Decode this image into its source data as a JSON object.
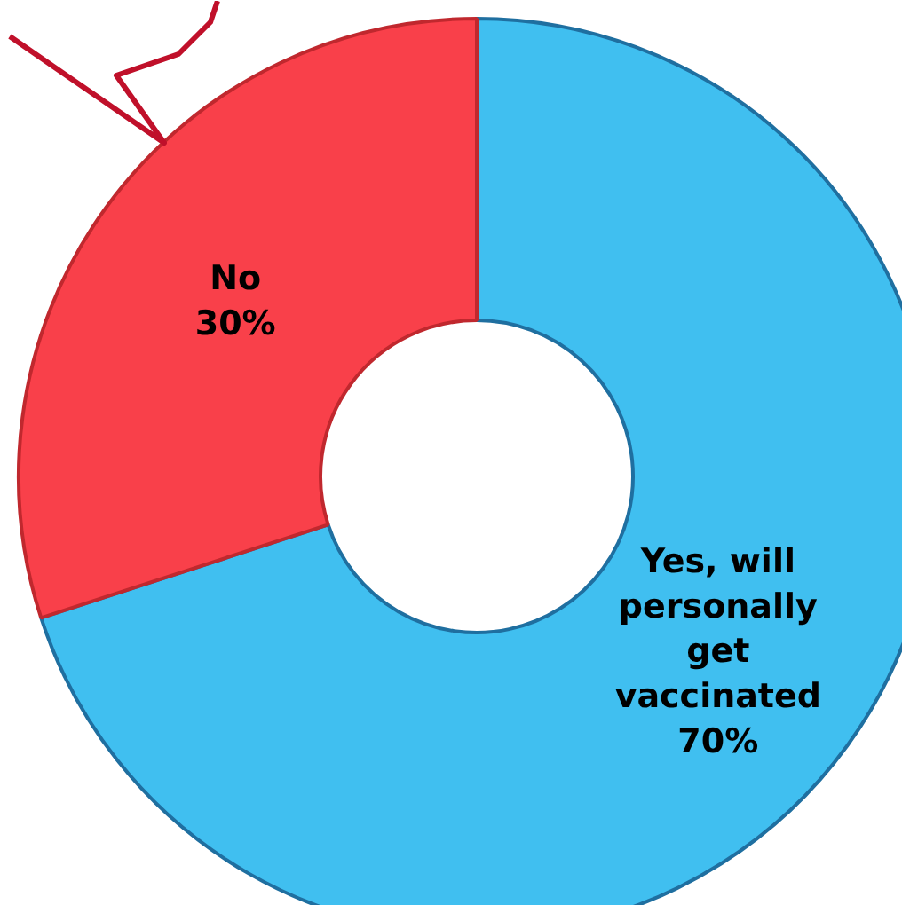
{
  "chart_data": {
    "type": "donut",
    "categories": [
      "Yes, will personally get vaccinated",
      "No"
    ],
    "values": [
      70,
      30
    ],
    "value_labels": [
      "70%",
      "30%"
    ],
    "colors": [
      "#40bff0",
      "#f9404a"
    ]
  }
}
